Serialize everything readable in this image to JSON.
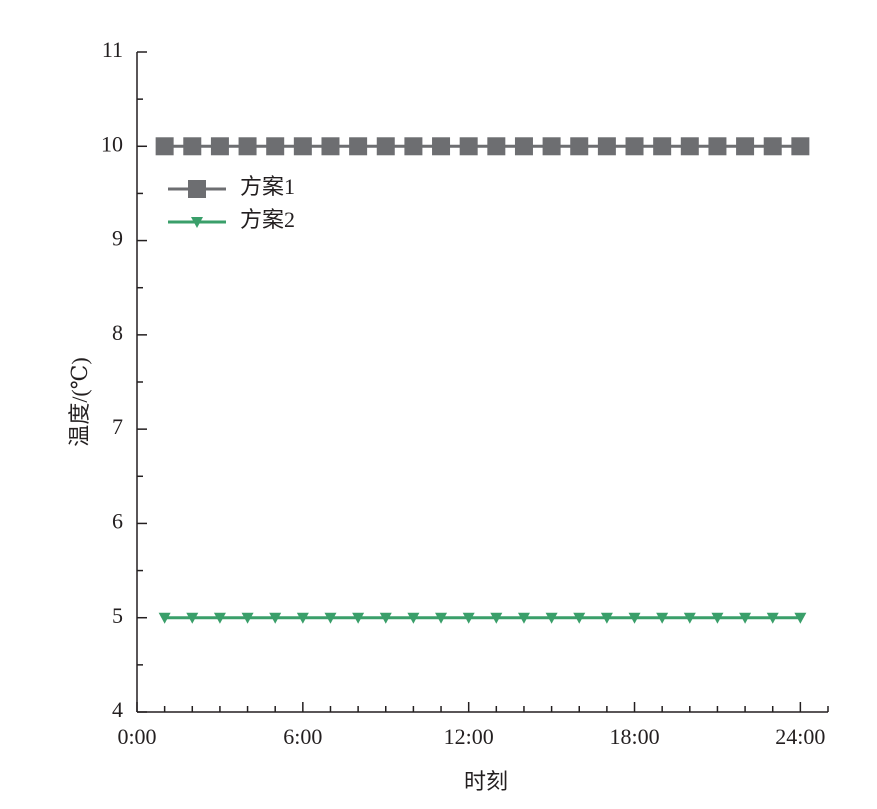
{
  "chart_data": {
    "type": "line",
    "x_label": "时刻",
    "y_label": "温度/(℃)",
    "x": [
      1,
      2,
      3,
      4,
      5,
      6,
      7,
      8,
      9,
      10,
      11,
      12,
      13,
      14,
      15,
      16,
      17,
      18,
      19,
      20,
      21,
      22,
      23,
      24
    ],
    "series": [
      {
        "name": "方案1",
        "color": "#6d6e71",
        "marker": "square",
        "values": [
          10,
          10,
          10,
          10,
          10,
          10,
          10,
          10,
          10,
          10,
          10,
          10,
          10,
          10,
          10,
          10,
          10,
          10,
          10,
          10,
          10,
          10,
          10,
          10
        ]
      },
      {
        "name": "方案2",
        "color": "#3a9f6a",
        "marker": "triangle-down",
        "values": [
          5,
          5,
          5,
          5,
          5,
          5,
          5,
          5,
          5,
          5,
          5,
          5,
          5,
          5,
          5,
          5,
          5,
          5,
          5,
          5,
          5,
          5,
          5,
          5
        ]
      }
    ],
    "xlim": [
      0,
      25
    ],
    "ylim": [
      4,
      11
    ],
    "xticks": [
      {
        "value": 0,
        "label": "0:00"
      },
      {
        "value": 6,
        "label": "6:00"
      },
      {
        "value": 12,
        "label": "12:00"
      },
      {
        "value": 18,
        "label": "18:00"
      },
      {
        "value": 24,
        "label": "24:00"
      }
    ],
    "xminor_ticks": [
      1,
      2,
      3,
      4,
      5,
      7,
      8,
      9,
      10,
      11,
      13,
      14,
      15,
      16,
      17,
      19,
      20,
      21,
      22,
      23,
      25
    ],
    "yticks": [
      4,
      5,
      6,
      7,
      8,
      9,
      10,
      11
    ],
    "yminor_ticks": [
      4.5,
      5.5,
      6.5,
      7.5,
      8.5,
      9.5,
      10.5
    ],
    "legend": "upper left",
    "grid": false
  }
}
